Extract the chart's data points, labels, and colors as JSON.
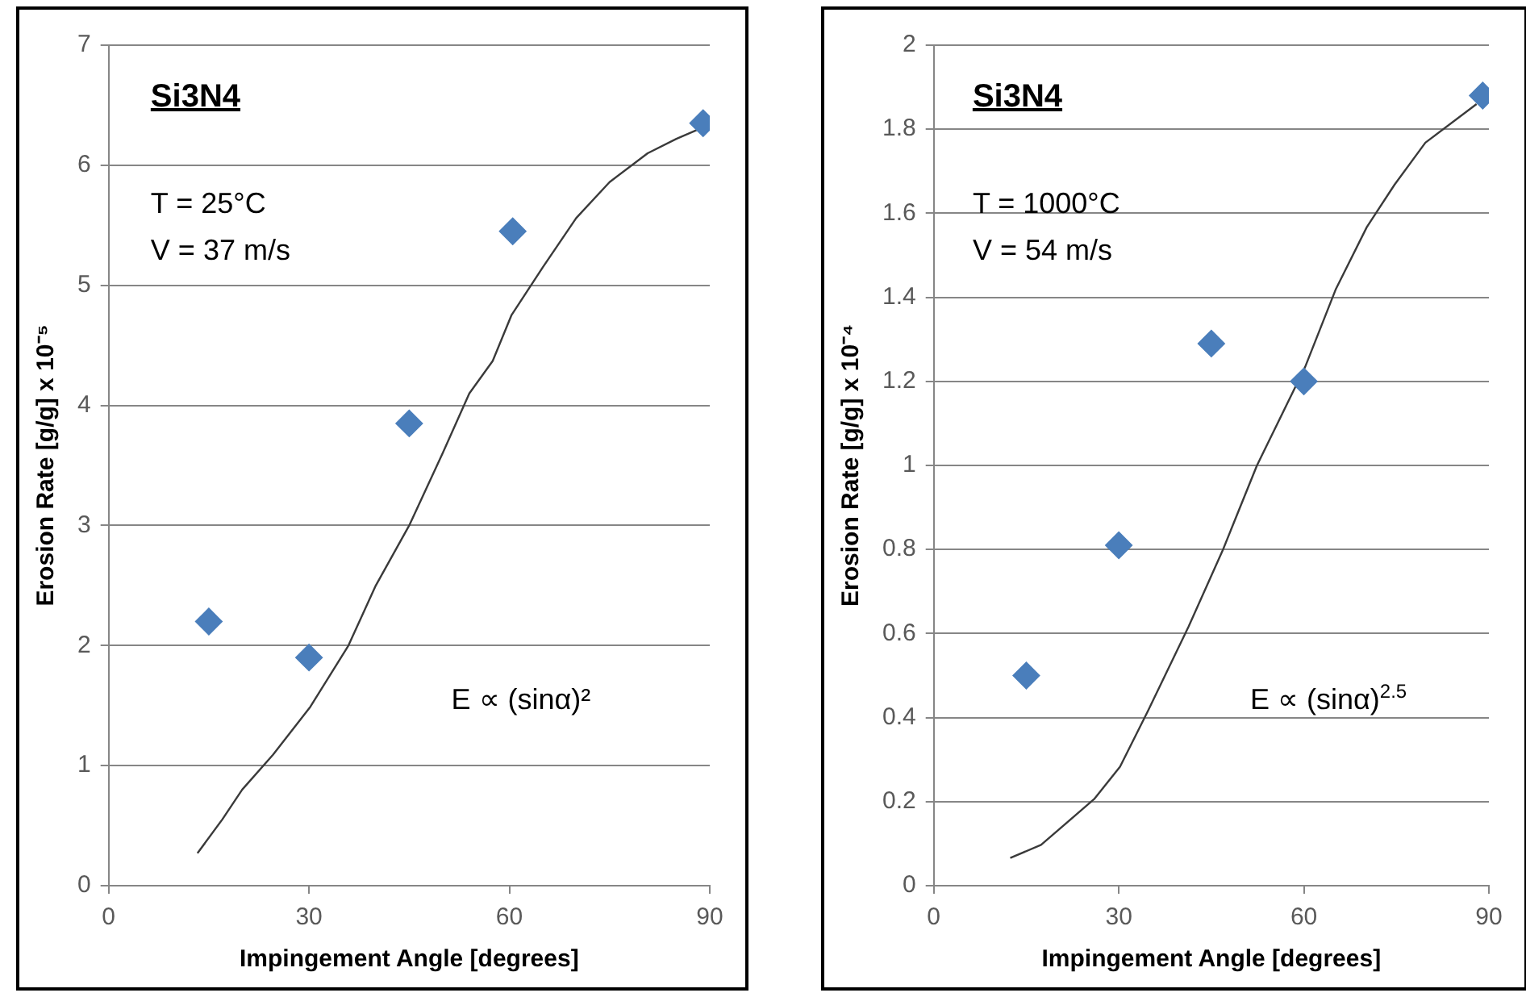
{
  "chart_data": [
    {
      "type": "scatter",
      "title": "Si3N4",
      "xlabel": "Impingement Angle [degrees]",
      "ylabel": "Erosion Rate [g/g] x 10⁻⁵",
      "annotations": [
        "T = 25°C",
        "V = 37 m/s",
        "E ∝ (sinα)²"
      ],
      "xlim": [
        0,
        90
      ],
      "xticks": [
        0,
        30,
        60,
        90
      ],
      "ylim": [
        0,
        7
      ],
      "yticks": [
        0,
        1,
        2,
        3,
        4,
        5,
        6,
        7
      ],
      "grid": "y",
      "legend": false,
      "series": [
        {
          "type": "scatter",
          "marker": "diamond",
          "color": "#4a7ebb",
          "x": [
            15,
            30,
            60.5,
            45,
            89
          ],
          "values": [
            2.2,
            1.9,
            5.45,
            3.85,
            6.35
          ]
        },
        {
          "type": "line",
          "marker": "none",
          "color": "#3a3a3a",
          "x": [
            13.3,
            17,
            20,
            24.6,
            30.2,
            35.9,
            40,
            45,
            50,
            54,
            57.5,
            60.3,
            65,
            70,
            75,
            80.7,
            85,
            89.2
          ],
          "values": [
            0.27,
            0.55,
            0.8,
            1.09,
            1.49,
            2.0,
            2.5,
            3.0,
            3.6,
            4.1,
            4.37,
            4.75,
            5.15,
            5.56,
            5.86,
            6.1,
            6.22,
            6.32
          ]
        }
      ]
    },
    {
      "type": "scatter",
      "title": "Si3N4",
      "xlabel": "Impingement Angle [degrees]",
      "ylabel": "Erosion Rate [g/g] x 10⁻⁴",
      "annotations": [
        "T = 1000°C",
        "V = 54 m/s",
        "E ∝ (sinα)$^{2.5}$"
      ],
      "xlim": [
        0,
        90
      ],
      "xticks": [
        0,
        30,
        60,
        90
      ],
      "ylim": [
        0,
        2
      ],
      "yticks": [
        0,
        0.2,
        0.4,
        0.6,
        0.8,
        1,
        1.2,
        1.4,
        1.6,
        1.8,
        2
      ],
      "grid": "y",
      "legend": false,
      "series": [
        {
          "type": "scatter",
          "marker": "diamond",
          "color": "#4a7ebb",
          "x": [
            15,
            30,
            45,
            60,
            89
          ],
          "values": [
            0.5,
            0.81,
            1.29,
            1.2,
            1.88
          ]
        },
        {
          "type": "line",
          "marker": "none",
          "color": "#3a3a3a",
          "x": [
            12.4,
            17.4,
            26,
            30.2,
            34.7,
            41.3,
            46.9,
            52.4,
            60.2,
            65.2,
            70.2,
            74.7,
            79.7,
            88
          ],
          "values": [
            0.066,
            0.097,
            0.206,
            0.283,
            0.415,
            0.616,
            0.8,
            1.0,
            1.234,
            1.42,
            1.567,
            1.668,
            1.768,
            1.86
          ]
        }
      ]
    }
  ]
}
